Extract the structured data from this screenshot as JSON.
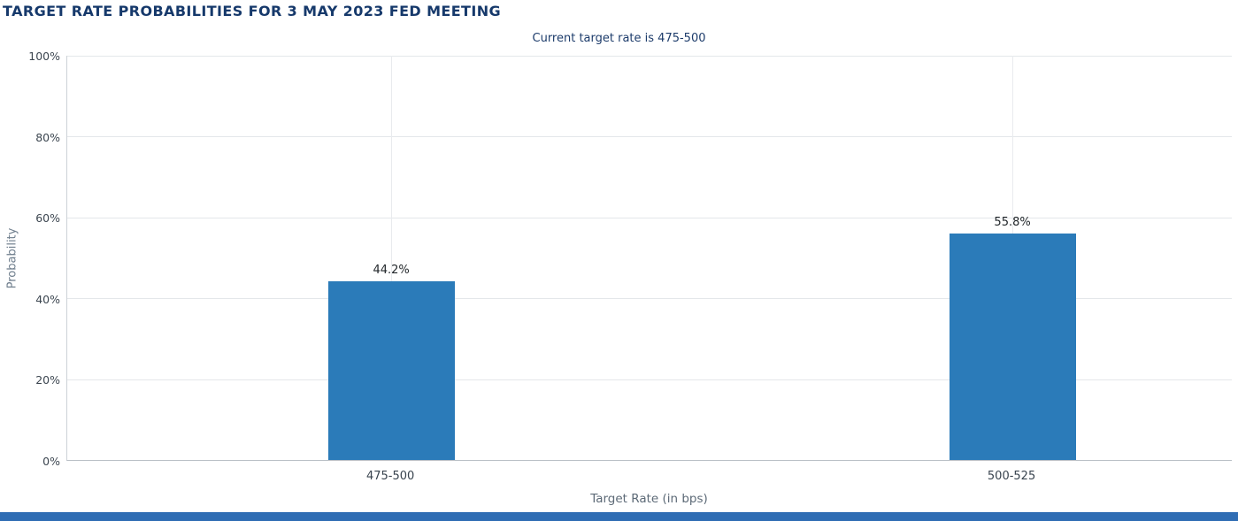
{
  "chart_data": {
    "type": "bar",
    "title": "TARGET RATE PROBABILITIES FOR 3 MAY 2023 FED MEETING",
    "subtitle": "Current target rate is 475-500",
    "categories": [
      "475-500",
      "500-525"
    ],
    "values": [
      44.2,
      55.8
    ],
    "value_labels": [
      "44.2%",
      "55.8%"
    ],
    "xlabel": "Target Rate (in bps)",
    "ylabel": "Probability",
    "ylim": [
      0,
      100
    ],
    "yticks": [
      0,
      20,
      40,
      60,
      80,
      100
    ],
    "ytick_labels": [
      "0%",
      "20%",
      "40%",
      "60%",
      "80%",
      "100%"
    ],
    "grid": true,
    "legend": "none",
    "bar_color": "#2b7bb9",
    "bar_center_fractions": [
      0.278,
      0.811
    ],
    "bar_width_fraction": 0.1086
  },
  "colors": {
    "title_text": "#16396b",
    "subtitle_text": "#1d3c6b",
    "bar": "#2b7bb9",
    "footer_strip": "#2f6db4",
    "gridline": "#e4e7ea",
    "axis_line": "#cdd2d7"
  }
}
